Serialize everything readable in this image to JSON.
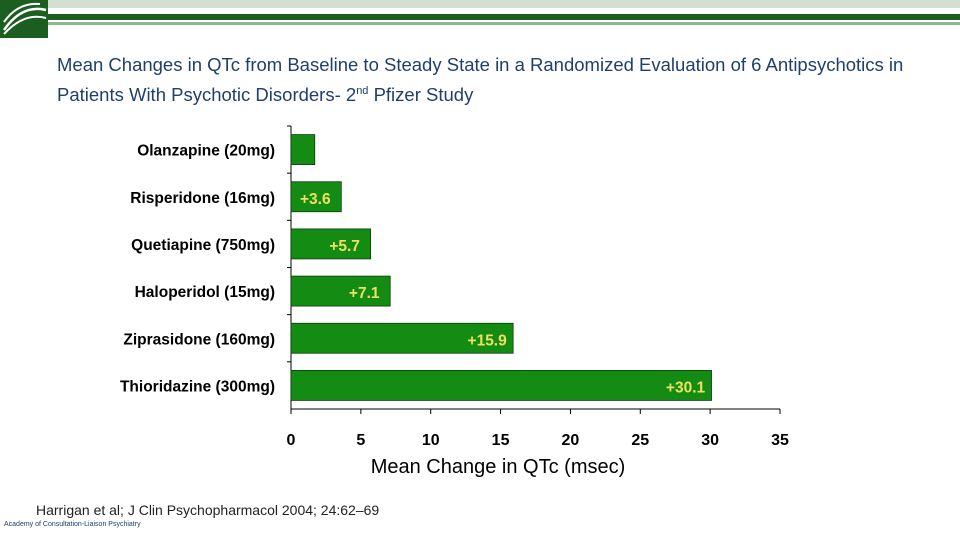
{
  "slide": {
    "title_pre": "Mean Changes in QTc from Baseline to Steady State in a Randomized Evaluation of 6 Antipsychotics in Patients With Psychotic Disorders-  2",
    "title_sup": "nd",
    "title_post": " Pfizer Study",
    "citation": "Harrigan et al; J Clin Psychopharmacol 2004; 24:62–69",
    "footer": "Academy of Consultation-Liaison Psychiatry",
    "colors": {
      "bar": "#148c14",
      "bar_label": "#f0e060",
      "title": "#1f3f6d",
      "header_dark": "#1b5e20"
    }
  },
  "chart_data": {
    "type": "bar",
    "orientation": "horizontal",
    "categories": [
      "Olanzapine (20mg)",
      "Risperidone (16mg)",
      "Quetiapine (750mg)",
      "Haloperidol (15mg)",
      "Ziprasidone (160mg)",
      "Thioridazine (300mg)"
    ],
    "values": [
      1.7,
      3.6,
      5.7,
      7.1,
      15.9,
      30.1
    ],
    "data_labels": [
      "",
      "+3.6",
      "+5.7",
      "+7.1",
      "+15.9",
      "+30.1"
    ],
    "xlabel": "Mean Change in QTc (msec)",
    "xlim": [
      0,
      35
    ],
    "xticks": [
      "0",
      "5",
      "10",
      "15",
      "20",
      "25",
      "30",
      "35"
    ],
    "grid": false
  }
}
